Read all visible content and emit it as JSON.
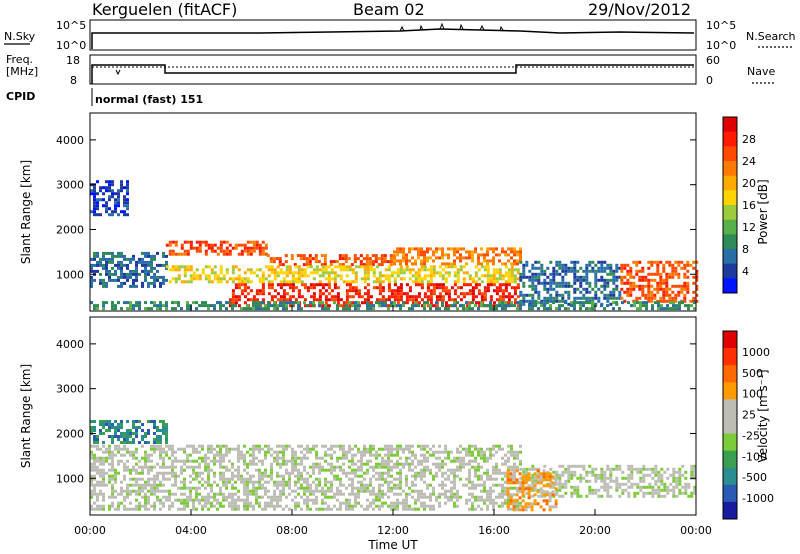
{
  "header": {
    "station": "Kerguelen (fitACF)",
    "beam": "Beam 02",
    "date": "29/Nov/2012"
  },
  "status_panel": {
    "nsky_label": "N.Sky",
    "nsearch_label": "N.Search",
    "exp_top": "10^5",
    "exp_bottom": "10^0",
    "freq_label_1": "Freq.",
    "freq_label_2": "[MHz]",
    "freq_ticks": [
      "18",
      "8"
    ],
    "nave_label": "Nave",
    "nave_ticks": [
      "60",
      "0"
    ],
    "cpid_label": "CPID",
    "cpid_value": "normal (fast) 151"
  },
  "colors": {
    "power_scale": [
      "#0015ff",
      "#1f3a9e",
      "#2a6ea8",
      "#2e8b57",
      "#57b04a",
      "#9ccc3c",
      "#ffd400",
      "#ffaa00",
      "#ff7a00",
      "#ff4a00",
      "#ff1a00",
      "#e00000"
    ],
    "velocity_scale": [
      "#1a1aa0",
      "#2a5ab4",
      "#2a8e8e",
      "#3aa050",
      "#7ccc3a",
      "#bdbdb5",
      "#bdbdb5",
      "#ff9a00",
      "#ff6a00",
      "#ff3000",
      "#e00000"
    ]
  },
  "chart_data": [
    {
      "type": "heatmap",
      "name": "power",
      "ylabel": "Slant Range [km]",
      "ylim": [
        180,
        4600
      ],
      "yticks": [
        1000,
        2000,
        3000,
        4000
      ],
      "xlim": [
        0,
        24
      ],
      "colorbar_label": "Power [dB]",
      "colorbar_ticks": [
        "28",
        "24",
        "20",
        "16",
        "12",
        "8",
        "4"
      ],
      "bands": [
        {
          "t0": 0.0,
          "t1": 3.0,
          "r0": 700,
          "r1": 1500,
          "level": 2
        },
        {
          "t0": 0.0,
          "t1": 1.5,
          "r0": 2300,
          "r1": 3100,
          "level": 1
        },
        {
          "t0": 3.0,
          "t1": 7.0,
          "r0": 1450,
          "r1": 1750,
          "level": 9
        },
        {
          "t0": 7.0,
          "t1": 12.0,
          "r0": 1200,
          "r1": 1450,
          "level": 9
        },
        {
          "t0": 12.0,
          "t1": 17.0,
          "r0": 1250,
          "r1": 1600,
          "level": 8
        },
        {
          "t0": 3.0,
          "t1": 17.0,
          "r0": 850,
          "r1": 1200,
          "level": 6
        },
        {
          "t0": 5.5,
          "t1": 17.0,
          "r0": 300,
          "r1": 800,
          "level": 10
        },
        {
          "t0": 17.0,
          "t1": 21.0,
          "r0": 300,
          "r1": 1300,
          "level": 2
        },
        {
          "t0": 21.0,
          "t1": 24.0,
          "r0": 400,
          "r1": 1300,
          "level": 9
        },
        {
          "t0": 0.0,
          "t1": 24.0,
          "r0": 200,
          "r1": 400,
          "level": 3
        }
      ]
    },
    {
      "type": "heatmap",
      "name": "velocity",
      "ylabel": "Slant Range [km]",
      "ylim": [
        180,
        4600
      ],
      "yticks": [
        1000,
        2000,
        3000,
        4000
      ],
      "xlim": [
        0,
        24
      ],
      "xlabel": "Time UT",
      "xticks": [
        "00:00",
        "04:00",
        "08:00",
        "12:00",
        "16:00",
        "20:00",
        "00:00"
      ],
      "colorbar_label": "Velocity [m s⁻¹]",
      "colorbar_ticks": [
        "1000",
        "500",
        "100",
        "25",
        "-25",
        "-100",
        "-500",
        "-1000"
      ],
      "bands": [
        {
          "t0": 0.0,
          "t1": 17.0,
          "r0": 300,
          "r1": 1750,
          "level": 5
        },
        {
          "t0": 17.0,
          "t1": 24.0,
          "r0": 600,
          "r1": 1300,
          "level": 5
        },
        {
          "t0": 0.0,
          "t1": 3.0,
          "r0": 1800,
          "r1": 2300,
          "level": 2
        },
        {
          "t0": 16.5,
          "t1": 18.5,
          "r0": 300,
          "r1": 1200,
          "level": 7
        }
      ]
    }
  ]
}
